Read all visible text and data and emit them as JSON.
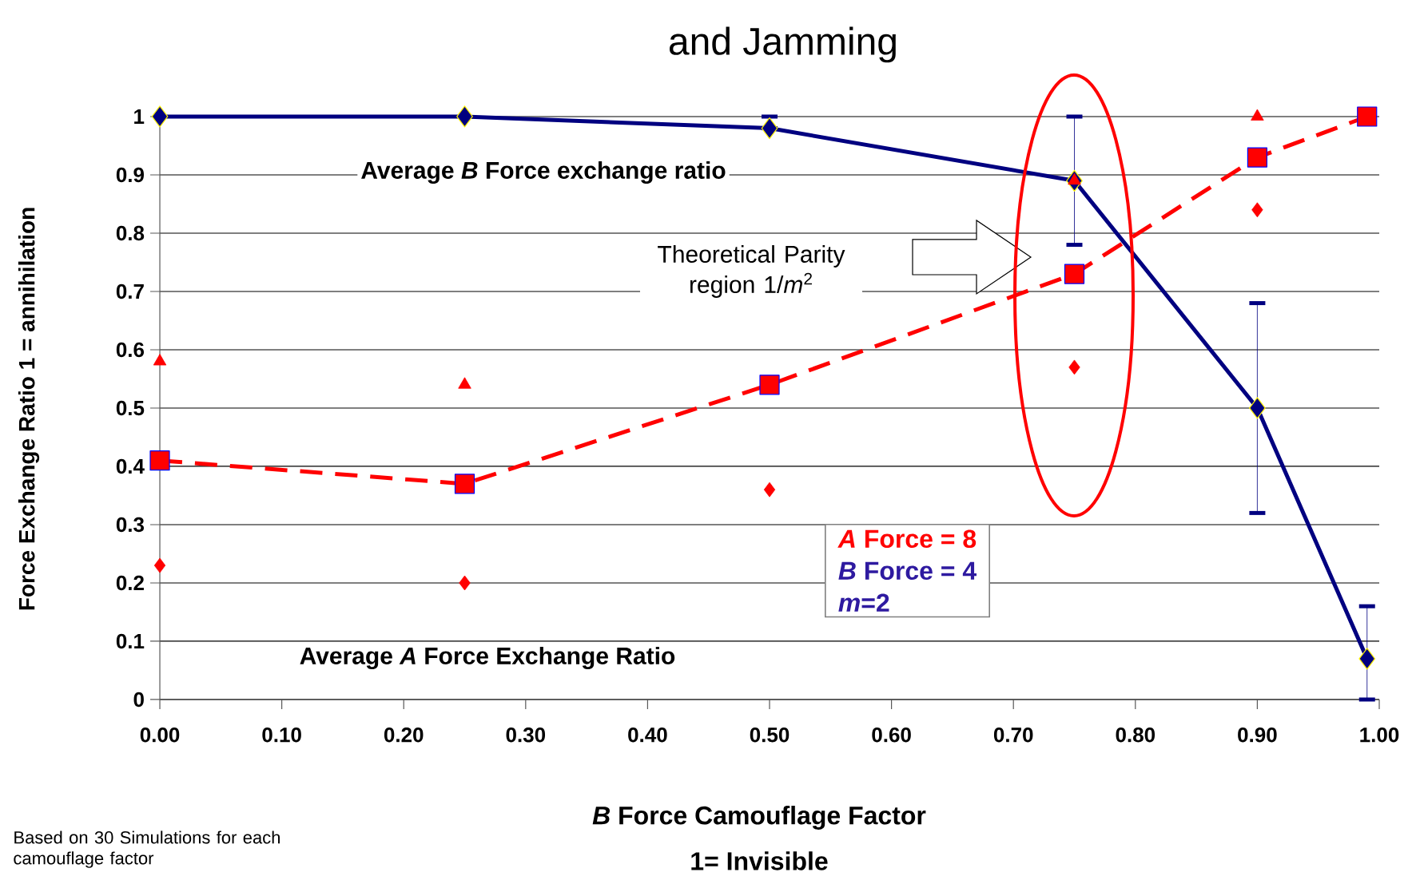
{
  "chart_data": {
    "type": "line",
    "title": "and Jamming",
    "xlabel": "*B* Force Camouflage Factor",
    "ylabel": "Force Exchange  Ratio 1 = annihilation",
    "x": [
      0,
      0.25,
      0.5,
      0.75,
      0.9,
      0.99
    ],
    "xlim": [
      0,
      1
    ],
    "ylim": [
      0,
      1
    ],
    "xticks": [
      {
        "value": 0,
        "label": "0.00"
      },
      {
        "value": 0.1,
        "label": "0.10"
      },
      {
        "value": 0.2,
        "label": "0.20"
      },
      {
        "value": 0.3,
        "label": "0.30"
      },
      {
        "value": 0.4,
        "label": "0.40"
      },
      {
        "value": 0.5,
        "label": "0.50"
      },
      {
        "value": 0.6,
        "label": "0.60"
      },
      {
        "value": 0.7,
        "label": "0.70"
      },
      {
        "value": 0.8,
        "label": "0.80"
      },
      {
        "value": 0.9,
        "label": "0.90"
      },
      {
        "value": 1,
        "label": "1.00"
      }
    ],
    "yticks": [
      0,
      0.1,
      0.2,
      0.3,
      0.4,
      0.5,
      0.6,
      0.7,
      0.8,
      0.9,
      1
    ],
    "grid": "y",
    "series": [
      {
        "type": "line",
        "color": "#000080",
        "marker": "diamond",
        "line_style": "solid",
        "values": [
          1.0,
          1.0,
          0.98,
          0.89,
          0.5,
          0.07
        ],
        "errors": [
          null,
          null,
          [
            0.98,
            1.0
          ],
          [
            0.78,
            1.0
          ],
          [
            0.32,
            0.68
          ],
          [
            0.0,
            0.16
          ]
        ]
      },
      {
        "type": "line",
        "color": "#ff0000",
        "marker": "square",
        "line_style": "dashed",
        "values": [
          0.41,
          0.37,
          0.54,
          0.73,
          0.93,
          1.0
        ]
      },
      {
        "type": "scatter",
        "color": "#ff0000",
        "marker": "triangle",
        "values": [
          0.58,
          0.54,
          null,
          0.89,
          1.0,
          null
        ]
      },
      {
        "type": "scatter",
        "color": "#ff0000",
        "marker": "diamond",
        "values": [
          0.23,
          0.2,
          0.36,
          0.57,
          0.84,
          null
        ]
      }
    ],
    "annotations": [
      "Average *B* Force exchange ratio",
      "Theoretical Parity region 1/*m*$^{2}$",
      "Average *A* Force Exchange Ratio",
      "*A* Force = 8",
      "*B* Force = 4",
      "*m*=2",
      "1= Invisible",
      "Based on 30 Simulations for each camouflage factor"
    ]
  }
}
